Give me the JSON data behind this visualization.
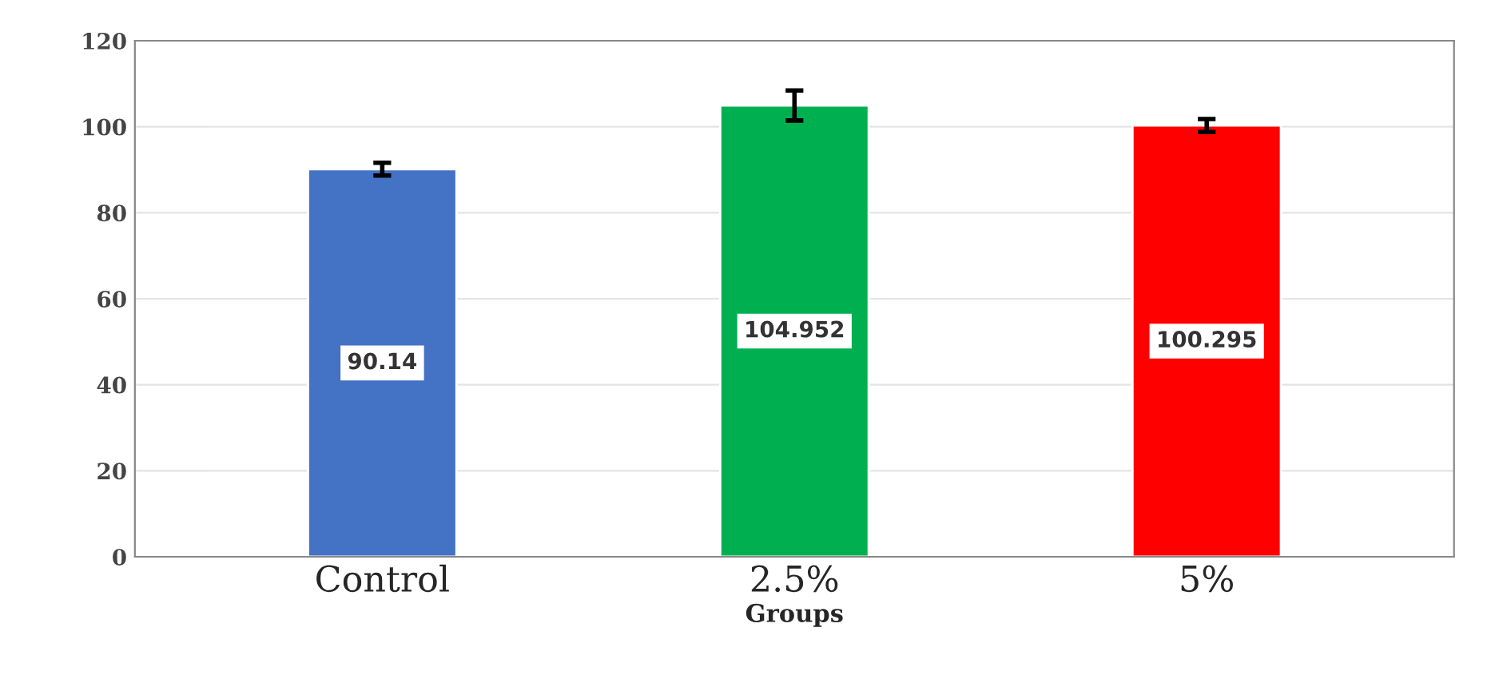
{
  "chart_data": {
    "type": "bar",
    "xlabel": "Groups",
    "categories": [
      "Control",
      "2.5%",
      "5%"
    ],
    "values": [
      90.14,
      104.952,
      100.295
    ],
    "colors": [
      "#4472c4",
      "#00b050",
      "#ff0000"
    ],
    "errors": [
      1.5,
      3.5,
      1.5
    ],
    "data_labels": true,
    "ylim": [
      0,
      120
    ],
    "yticks": [
      0,
      20,
      40,
      60,
      80,
      100,
      120
    ],
    "grid": "y"
  }
}
